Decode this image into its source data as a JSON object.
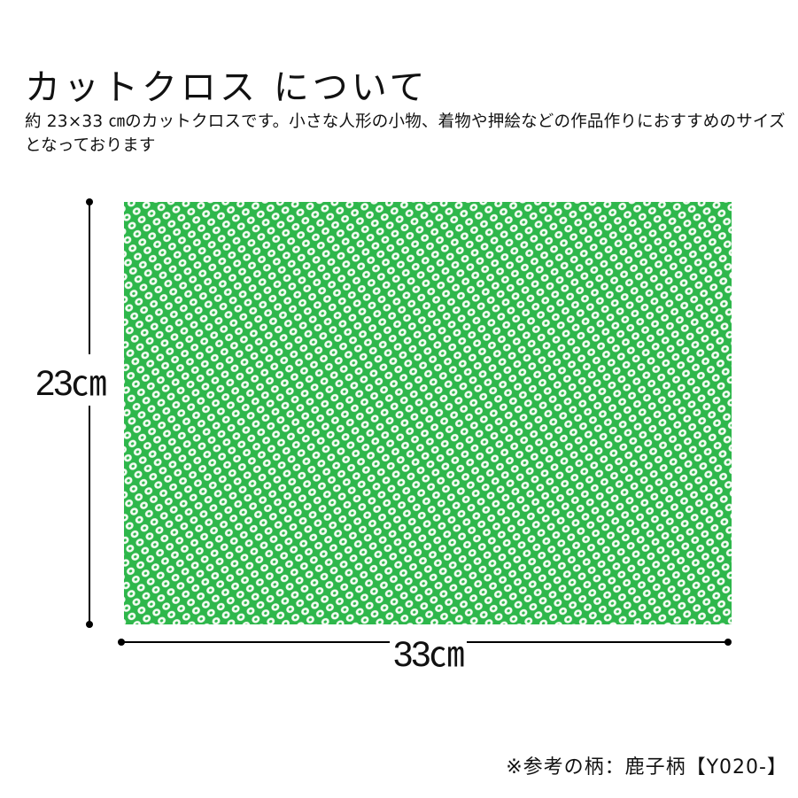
{
  "title": "カットクロス について",
  "description": "約 23×33 ㎝のカットクロスです。小さな人形の小物、着物や押絵などの作品作りにおすすめのサイズとなっております",
  "dimensions": {
    "height_label": "23㎝",
    "width_label": "33㎝"
  },
  "fabric": {
    "pattern": "shibori dots (kanoko)",
    "color": "#2eb74b",
    "dot_color": "#f4fbf2"
  },
  "note": "※参考の柄：鹿子柄【Y020-】"
}
